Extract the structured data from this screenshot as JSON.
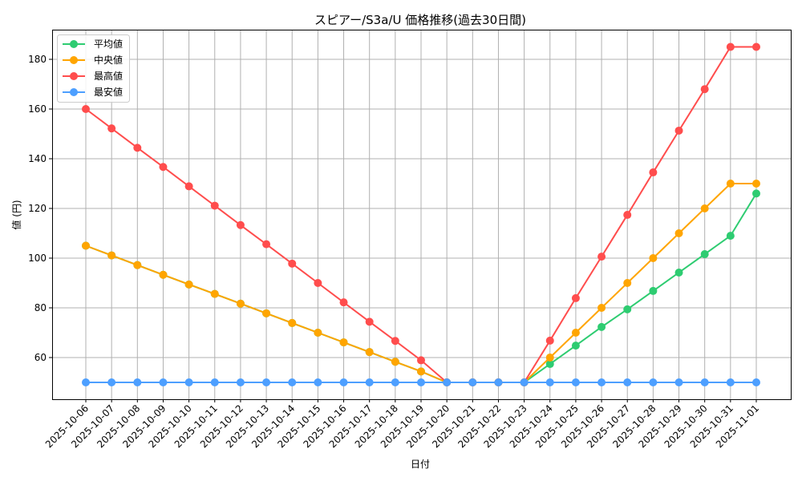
{
  "chart_data": {
    "type": "line",
    "title": "スピアー/S3a/U 価格推移(過去30日間)",
    "xlabel": "日付",
    "ylabel": "値 (円)",
    "ylim": [
      44,
      192
    ],
    "yticks": [
      60,
      80,
      100,
      120,
      140,
      160,
      180
    ],
    "grid": true,
    "legend_position": "upper left",
    "x": [
      "2025-10-06",
      "2025-10-07",
      "2025-10-08",
      "2025-10-09",
      "2025-10-10",
      "2025-10-11",
      "2025-10-12",
      "2025-10-13",
      "2025-10-14",
      "2025-10-15",
      "2025-10-16",
      "2025-10-17",
      "2025-10-18",
      "2025-10-19",
      "2025-10-20",
      "2025-10-21",
      "2025-10-22",
      "2025-10-23",
      "2025-10-24",
      "2025-10-25",
      "2025-10-26",
      "2025-10-27",
      "2025-10-28",
      "2025-10-29",
      "2025-10-30",
      "2025-10-31",
      "2025-11-01"
    ],
    "series": [
      {
        "name": "平均値",
        "color": "#2ecc71",
        "values": [
          105,
          101.1,
          97.2,
          93.3,
          89.4,
          85.6,
          81.7,
          77.8,
          73.9,
          70,
          66.1,
          62.2,
          58.3,
          54.4,
          50,
          50,
          50,
          50,
          57.4,
          64.8,
          72.3,
          79.4,
          86.8,
          94.2,
          101.6,
          109,
          126
        ]
      },
      {
        "name": "中央値",
        "color": "#ffa500",
        "values": [
          105,
          101.1,
          97.2,
          93.3,
          89.4,
          85.6,
          81.7,
          77.8,
          73.9,
          70,
          66.1,
          62.2,
          58.3,
          54.4,
          50,
          50,
          50,
          50,
          60,
          70,
          80,
          90,
          100,
          110,
          120,
          130,
          130
        ]
      },
      {
        "name": "最高値",
        "color": "#ff4d4d",
        "values": [
          160,
          152.2,
          144.4,
          136.7,
          128.9,
          121.1,
          113.3,
          105.6,
          97.8,
          90,
          82.2,
          74.4,
          66.7,
          58.9,
          50,
          50,
          50,
          50,
          66.8,
          83.9,
          100.6,
          117.4,
          134.5,
          151.3,
          168,
          185,
          185
        ]
      },
      {
        "name": "最安値",
        "color": "#4d9fff",
        "values": [
          50,
          50,
          50,
          50,
          50,
          50,
          50,
          50,
          50,
          50,
          50,
          50,
          50,
          50,
          50,
          50,
          50,
          50,
          50,
          50,
          50,
          50,
          50,
          50,
          50,
          50,
          50
        ]
      }
    ]
  }
}
